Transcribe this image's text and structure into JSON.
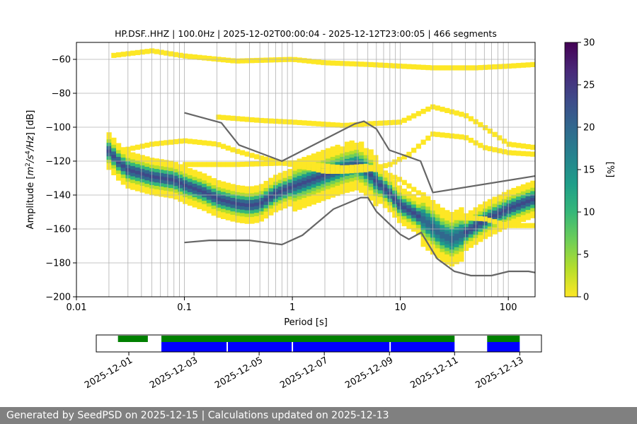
{
  "title": "HP.DSF..HHZ | 100.0Hz | 2025-12-02T00:00:04 - 2025-12-12T23:00:05 | 466 segments",
  "footer": "Generated by SeedPSD on 2025-12-15 | Calculations updated on 2025-12-13",
  "colors": {
    "grid": "#b0b0b0",
    "model": "#666666",
    "avail_green": "#008000",
    "avail_blue": "#0000ff",
    "colormap": [
      "#fde725",
      "#b5de2b",
      "#6ece58",
      "#35b779",
      "#1f9e89",
      "#26828e",
      "#31688e",
      "#3e4989",
      "#482878",
      "#440154"
    ]
  },
  "chart_data": [
    {
      "type": "heatmap",
      "xlabel": "Period [s]",
      "ylabel": "Amplitude [m²/s⁴/Hz] [dB]",
      "x_scale": "log",
      "xlim": [
        0.01,
        177
      ],
      "ylim": [
        -200,
        -50
      ],
      "x_ticks": [
        0.01,
        0.1,
        1,
        10,
        100
      ],
      "x_tick_labels": [
        "0.01",
        "0.1",
        "1",
        "10",
        "100"
      ],
      "y_ticks": [
        -200,
        -180,
        -160,
        -140,
        -120,
        -100,
        -80,
        -60
      ],
      "y_tick_labels": [
        "−200",
        "−180",
        "−160",
        "−140",
        "−120",
        "−100",
        "−80",
        "−60"
      ],
      "grid": true,
      "colorbar": {
        "label": "[%]",
        "range": [
          0,
          30
        ],
        "ticks": [
          0,
          5,
          10,
          15,
          20,
          25,
          30
        ],
        "tick_labels": [
          "0",
          "5",
          "10",
          "15",
          "20",
          "25",
          "30"
        ]
      },
      "mode_curve": {
        "x": [
          0.02,
          0.025,
          0.03,
          0.05,
          0.08,
          0.1,
          0.15,
          0.2,
          0.3,
          0.4,
          0.5,
          0.7,
          1.0,
          1.5,
          2.0,
          3.0,
          4.0,
          5.0,
          6.0,
          8.0,
          10,
          13,
          16,
          20,
          25,
          30,
          40,
          60,
          100,
          177
        ],
        "y": [
          -115,
          -122,
          -126,
          -130,
          -132,
          -135,
          -139,
          -143,
          -146,
          -147,
          -146,
          -140,
          -136,
          -132,
          -129,
          -125,
          -123,
          -127,
          -133,
          -140,
          -147,
          -151,
          -155,
          -160,
          -165,
          -167,
          -163,
          -156,
          -149,
          -143
        ]
      },
      "band_halfwidth": 7,
      "secondary_bands": [
        {
          "x": [
            0.03,
            0.05,
            0.1,
            0.2,
            0.3,
            0.5,
            0.8,
            1.2,
            2,
            3,
            5,
            8,
            12,
            20,
            40,
            60,
            100,
            177
          ],
          "y": [
            -113,
            -110,
            -108,
            -110,
            -114,
            -118,
            -121,
            -123,
            -126,
            -126,
            -125,
            -122,
            -116,
            -104,
            -106,
            -112,
            -115,
            -116
          ]
        },
        {
          "x": [
            0.02,
            0.05,
            0.1,
            0.3,
            1,
            2,
            5,
            10,
            20,
            50,
            100,
            177
          ],
          "y": [
            -58,
            -55,
            -58,
            -61,
            -60,
            -62,
            -63,
            -64,
            -65,
            -65,
            -64,
            -63
          ]
        },
        {
          "x": [
            0.2,
            0.5,
            1,
            3,
            5,
            10,
            20,
            40,
            60,
            100,
            177
          ],
          "y": [
            -94,
            -96,
            -97,
            -99,
            -98,
            -97,
            -88,
            -93,
            -100,
            -110,
            -112
          ]
        },
        {
          "x": [
            0.1,
            0.3,
            1,
            3,
            5,
            10,
            30,
            60,
            100,
            177
          ],
          "y": [
            -122,
            -122,
            -121,
            -124,
            -123,
            -131,
            -153,
            -154,
            -158,
            -158
          ]
        }
      ],
      "models": [
        {
          "x": [
            0.1,
            0.22,
            0.32,
            0.8,
            3.8,
            4.6,
            6.0,
            7.9,
            15.4,
            20.0,
            177
          ],
          "y": [
            -91.5,
            -97.4,
            -110.5,
            -120.0,
            -98.0,
            -96.5,
            -101.0,
            -113.5,
            -120.0,
            -138.5,
            -128.8
          ]
        },
        {
          "x": [
            0.1,
            0.17,
            0.4,
            0.8,
            1.24,
            2.4,
            4.3,
            5.0,
            6.0,
            10.0,
            12.0,
            15.6,
            21.9,
            31.6,
            45.0,
            70.0,
            101,
            154,
            177
          ],
          "y": [
            -168.0,
            -166.7,
            -166.7,
            -169.2,
            -163.7,
            -148.3,
            -141.5,
            -141.5,
            -149.7,
            -163.2,
            -166.1,
            -162.1,
            -177.5,
            -185.0,
            -187.5,
            -187.5,
            -185.0,
            -185.0,
            -185.7
          ]
        }
      ]
    },
    {
      "type": "availability",
      "x_tick_labels": [
        "2025-12-01",
        "2025-12-03",
        "2025-12-05",
        "2025-12-07",
        "2025-12-09",
        "2025-12-11",
        "2025-12-13"
      ],
      "green_segments": [
        [
          "2025-11-30T16:00",
          "2025-12-01T14:00"
        ],
        [
          "2025-12-02T00:00",
          "2025-12-11T00:00"
        ],
        [
          "2025-12-12T00:00",
          "2025-12-13T00:00"
        ]
      ],
      "blue_segments": [
        [
          "2025-12-02T00:00",
          "2025-12-04T00:00"
        ],
        [
          "2025-12-04T01:00",
          "2025-12-06T00:00"
        ],
        [
          "2025-12-06T01:00",
          "2025-12-09T00:00"
        ],
        [
          "2025-12-09T01:00",
          "2025-12-11T00:00"
        ],
        [
          "2025-12-12T00:00",
          "2025-12-13T00:00"
        ]
      ]
    }
  ]
}
